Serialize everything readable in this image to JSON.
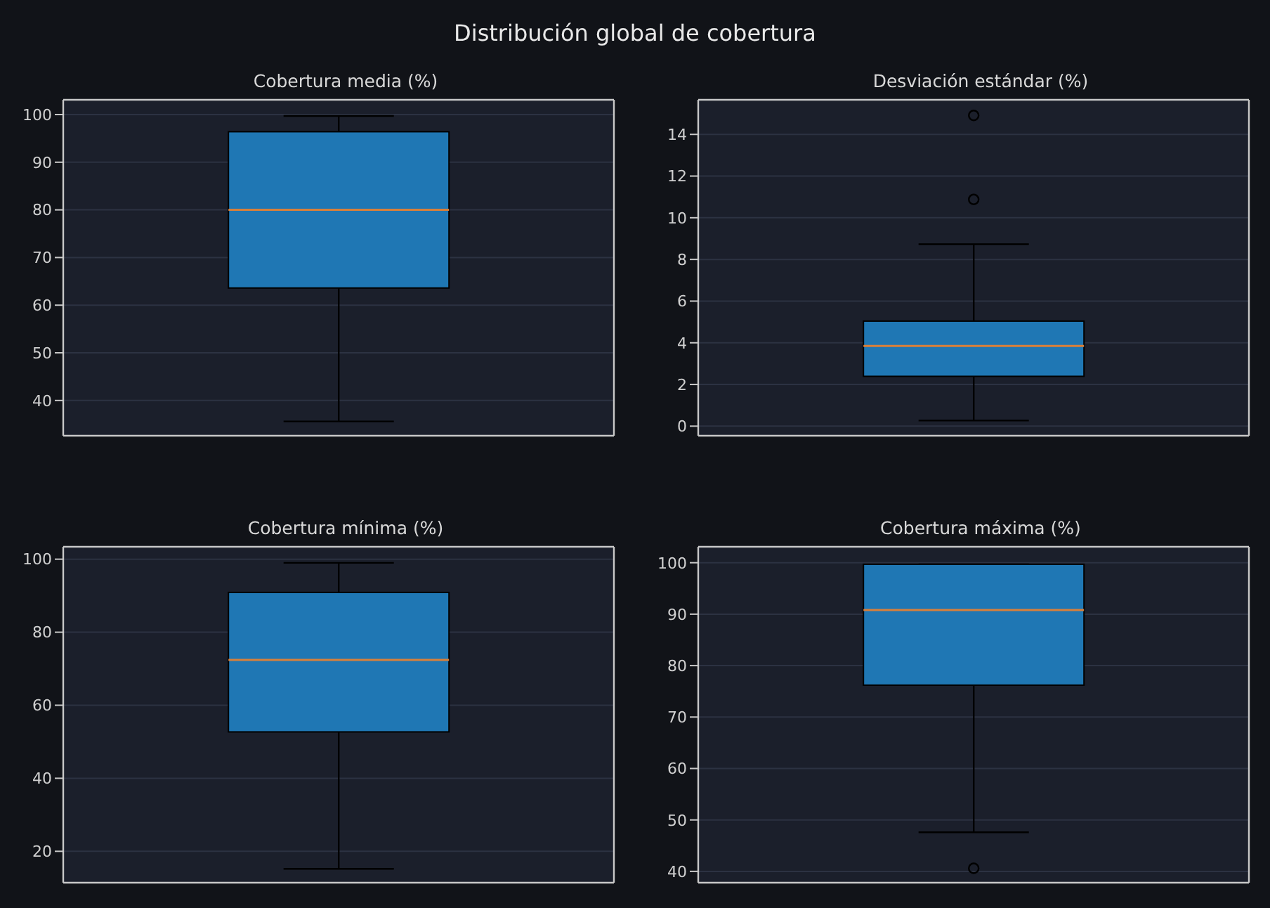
{
  "chart_data": [
    {
      "type": "box",
      "title": "Cobertura media (%)",
      "annotations": [
        "Distribución global de cobertura"
      ],
      "categories": [
        null
      ],
      "color": "#1f77b4",
      "boxes": [
        {
          "low": 35.6,
          "q1": 63.6,
          "median": 80.0,
          "q3": 96.4,
          "high": 99.7
        }
      ],
      "ylim": [
        32.6,
        103.1
      ],
      "yticks": [
        40,
        50,
        60,
        70,
        80,
        90,
        100
      ],
      "grid": "y",
      "tick_labels": "y"
    },
    {
      "type": "box",
      "title": "Desviación estándar (%)",
      "categories": [
        null
      ],
      "color": "#1f77b4",
      "boxes": [
        {
          "low": 0.27,
          "q1": 2.39,
          "median": 3.85,
          "q3": 5.04,
          "high": 8.73,
          "outliers": [
            10.88,
            14.91
          ]
        }
      ],
      "ylim": [
        -0.46,
        15.66
      ],
      "yticks": [
        0,
        2,
        4,
        6,
        8,
        10,
        12,
        14
      ],
      "grid": "y",
      "tick_labels": "y"
    },
    {
      "type": "box",
      "title": "Cobertura mínima (%)",
      "categories": [
        null
      ],
      "color": "#1f77b4",
      "boxes": [
        {
          "low": 15.2,
          "q1": 52.7,
          "median": 72.4,
          "q3": 90.9,
          "high": 99.0
        }
      ],
      "ylim": [
        11.4,
        103.4
      ],
      "yticks": [
        20,
        40,
        60,
        80,
        100
      ],
      "grid": "y",
      "tick_labels": "y"
    },
    {
      "type": "box",
      "title": "Cobertura máxima (%)",
      "categories": [
        null
      ],
      "color": "#1f77b4",
      "boxes": [
        {
          "low": 47.6,
          "q1": 76.2,
          "median": 90.8,
          "q3": 99.7,
          "high": 99.7,
          "outliers": [
            40.6
          ]
        }
      ],
      "ylim": [
        37.8,
        103.1
      ],
      "yticks": [
        40,
        50,
        60,
        70,
        80,
        90,
        100
      ],
      "grid": "y",
      "tick_labels": "y"
    }
  ]
}
